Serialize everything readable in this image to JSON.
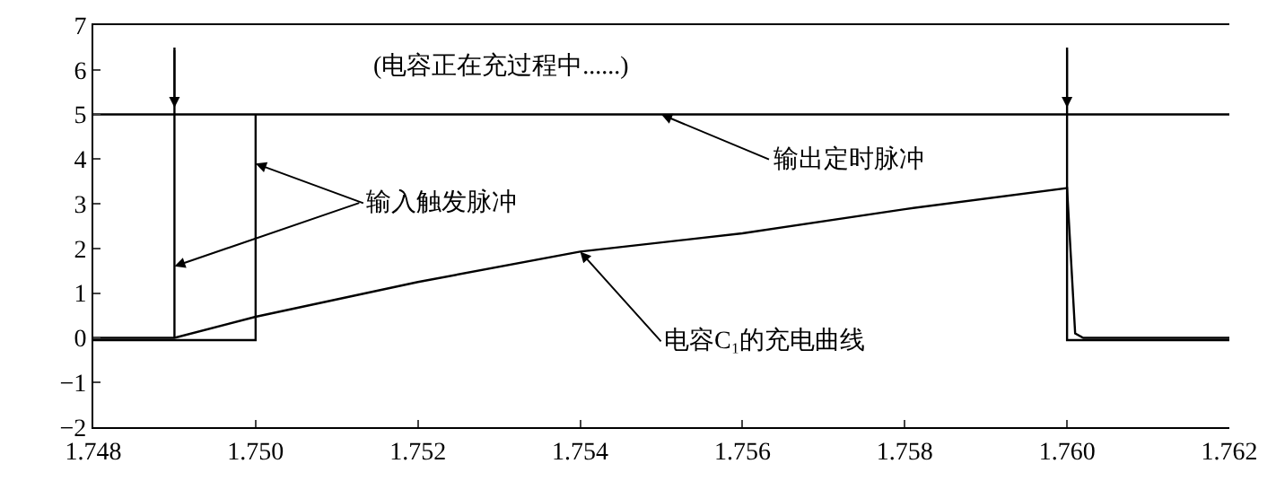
{
  "chart_data": {
    "type": "line",
    "series": [
      {
        "color": "#000000",
        "x": [
          1.748,
          1.762
        ],
        "values": [
          5,
          5
        ]
      },
      {
        "color": "#000000",
        "x": [
          1.748,
          1.75,
          1.75
        ],
        "values": [
          -0.05,
          -0.05,
          5
        ]
      },
      {
        "color": "#000000",
        "x": [
          1.749,
          1.749
        ],
        "values": [
          6.5,
          0
        ]
      },
      {
        "color": "#000000",
        "x": [
          1.76,
          1.76,
          1.762
        ],
        "values": [
          6.5,
          -0.05,
          -0.05
        ]
      },
      {
        "color": "#000000",
        "x": [
          1.748,
          1.749,
          1.75,
          1.752,
          1.754,
          1.756,
          1.758,
          1.76,
          1.7601,
          1.7602,
          1.762
        ],
        "values": [
          0,
          0,
          0.47,
          1.25,
          1.93,
          2.34,
          2.88,
          3.35,
          0.1,
          0,
          0
        ]
      }
    ],
    "xlim": [
      1.748,
      1.762
    ],
    "xticks": [
      1.748,
      {
        "value": 1.75,
        "label": "1.750"
      },
      1.752,
      1.754,
      1.756,
      1.758,
      {
        "value": 1.76,
        "label": "1.760"
      },
      1.762
    ],
    "ylim": [
      -2,
      7
    ],
    "yticks": [
      {
        "value": -2,
        "label": "−2"
      },
      {
        "value": -1,
        "label": "−1"
      },
      0,
      1,
      2,
      3,
      4,
      5,
      6,
      7
    ],
    "annotations": [
      "(电容正在充过程中......)",
      {
        "text": "输入触发脉冲",
        "x": 1.75,
        "y": 3.9
      },
      {
        "text": "输出定时脉冲",
        "x": 1.755,
        "y": 5
      },
      {
        "text": "电容C₁的充电曲线",
        "x": 1.754,
        "y": 1.93
      }
    ],
    "marker": "none",
    "line_style": "solid"
  }
}
